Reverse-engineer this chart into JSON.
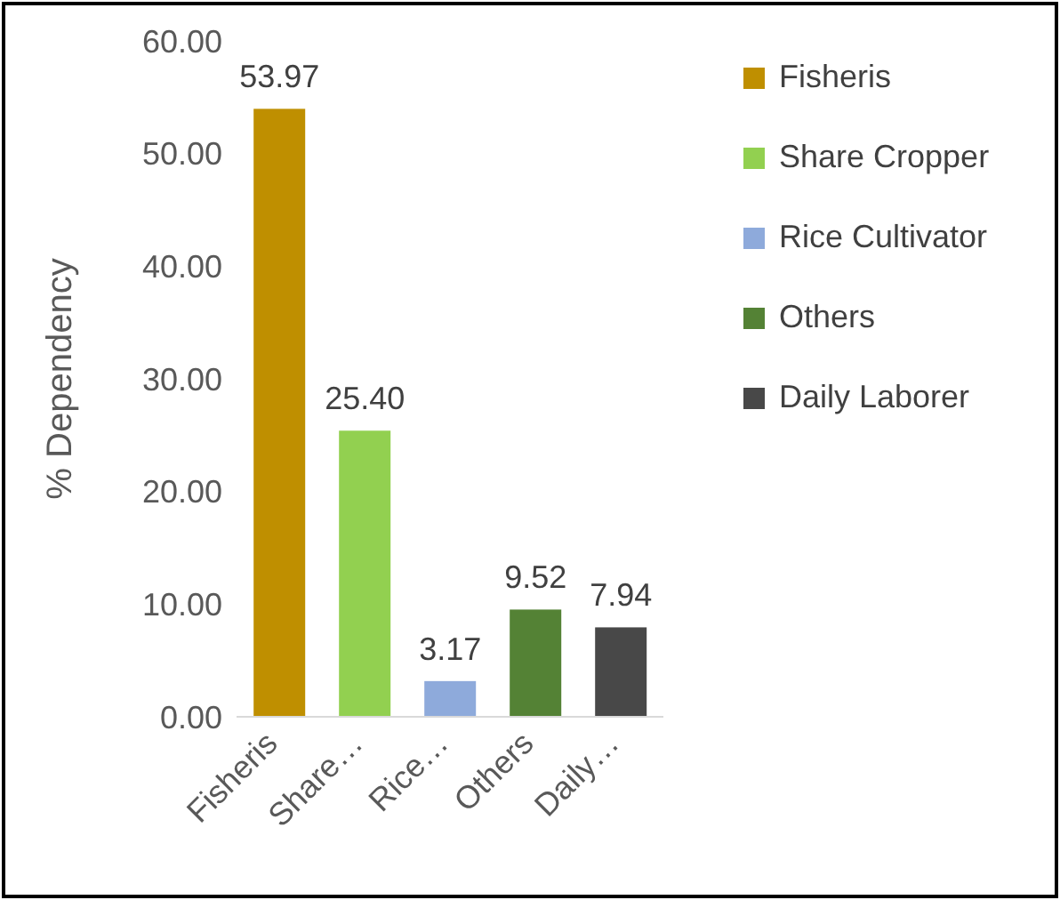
{
  "chart_data": {
    "type": "bar",
    "ylabel": "% Dependency",
    "categories": [
      "Fisheris",
      "Share…",
      "Rice…",
      "Others",
      "Daily…"
    ],
    "series": [
      {
        "name": "Fisheris",
        "color": "#bf8f00",
        "values": [
          53.97,
          null,
          null,
          null,
          null
        ],
        "value_labels": [
          "53.97",
          null,
          null,
          null,
          null
        ]
      },
      {
        "name": "Share Cropper",
        "color": "#92d050",
        "values": [
          null,
          25.4,
          null,
          null,
          null
        ],
        "value_labels": [
          null,
          "25.40",
          null,
          null,
          null
        ]
      },
      {
        "name": "Rice Cultivator",
        "color": "#8eaadb",
        "values": [
          null,
          null,
          3.17,
          null,
          null
        ],
        "value_labels": [
          null,
          null,
          "3.17",
          null,
          null
        ]
      },
      {
        "name": "Others",
        "color": "#548235",
        "values": [
          null,
          null,
          null,
          9.52,
          null
        ],
        "value_labels": [
          null,
          null,
          null,
          "9.52",
          null
        ]
      },
      {
        "name": "Daily Laborer",
        "color": "#484848",
        "values": [
          null,
          null,
          null,
          null,
          7.94
        ],
        "value_labels": [
          null,
          null,
          null,
          null,
          "7.94"
        ]
      }
    ],
    "ylim": [
      0,
      60
    ],
    "yticks": [
      {
        "value": 0,
        "label": "0.00"
      },
      {
        "value": 10,
        "label": "10.00"
      },
      {
        "value": 20,
        "label": "20.00"
      },
      {
        "value": 30,
        "label": "30.00"
      },
      {
        "value": 40,
        "label": "40.00"
      },
      {
        "value": 50,
        "label": "50.00"
      },
      {
        "value": 60,
        "label": "60.00"
      }
    ],
    "grid": false,
    "legend": "top right"
  }
}
